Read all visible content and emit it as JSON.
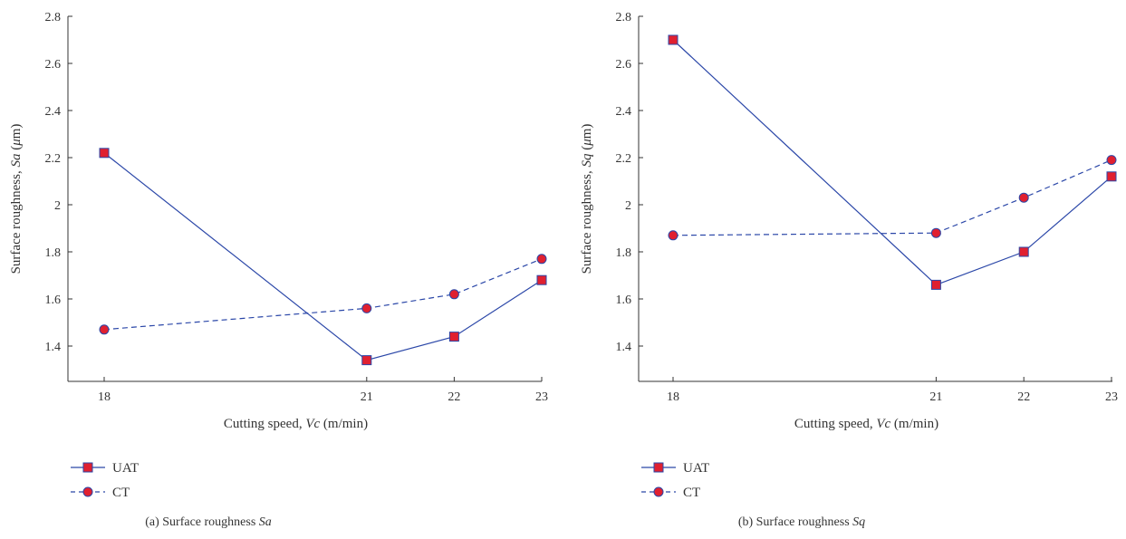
{
  "chart_data": [
    {
      "type": "line",
      "x": [
        18,
        21,
        22,
        23
      ],
      "xticks": [
        "18",
        "21",
        "22",
        "23"
      ],
      "yticks": [
        "1.4",
        "1.6",
        "1.8",
        "2",
        "2.2",
        "2.4",
        "2.6",
        "2.8"
      ],
      "ylim": [
        1.25,
        2.8
      ],
      "xlabel": {
        "pre": "Cutting speed, ",
        "var": "Vc",
        "post": " (m/min)"
      },
      "ylabel": {
        "pre": "Surface roughness, ",
        "var": "Sa",
        "post": " (",
        "mu": "μ",
        "unit": "m)"
      },
      "caption": {
        "pre": "(a)  Surface roughness ",
        "var": "Sa"
      },
      "legend_placement": "bottom-left",
      "series": [
        {
          "name": "UAT",
          "values": [
            2.22,
            1.34,
            1.44,
            1.68
          ],
          "marker": "square",
          "line": "solid"
        },
        {
          "name": "CT",
          "values": [
            1.47,
            1.56,
            1.62,
            1.77
          ],
          "marker": "circle",
          "line": "dashed"
        }
      ]
    },
    {
      "type": "line",
      "x": [
        18,
        21,
        22,
        23
      ],
      "xticks": [
        "18",
        "21",
        "22",
        "23"
      ],
      "yticks": [
        "1.4",
        "1.6",
        "1.8",
        "2",
        "2.2",
        "2.4",
        "2.6",
        "2.8"
      ],
      "ylim": [
        1.25,
        2.8
      ],
      "xlabel": {
        "pre": "Cutting speed, ",
        "var": "Vc",
        "post": " (m/min)"
      },
      "ylabel": {
        "pre": "Surface roughness, ",
        "var": "Sq",
        "post": " (",
        "mu": "μ",
        "unit": "m)"
      },
      "caption": {
        "pre": "(b)  Surface roughness ",
        "var": "Sq"
      },
      "legend_placement": "bottom-left",
      "series": [
        {
          "name": "UAT",
          "values": [
            2.7,
            1.66,
            1.8,
            2.12
          ],
          "marker": "square",
          "line": "solid"
        },
        {
          "name": "CT",
          "values": [
            1.87,
            1.88,
            2.03,
            2.19
          ],
          "marker": "circle",
          "line": "dashed"
        }
      ]
    }
  ],
  "colors": {
    "line": "#2b47a8",
    "marker_fill": "#e02030",
    "axis": "#333333"
  }
}
